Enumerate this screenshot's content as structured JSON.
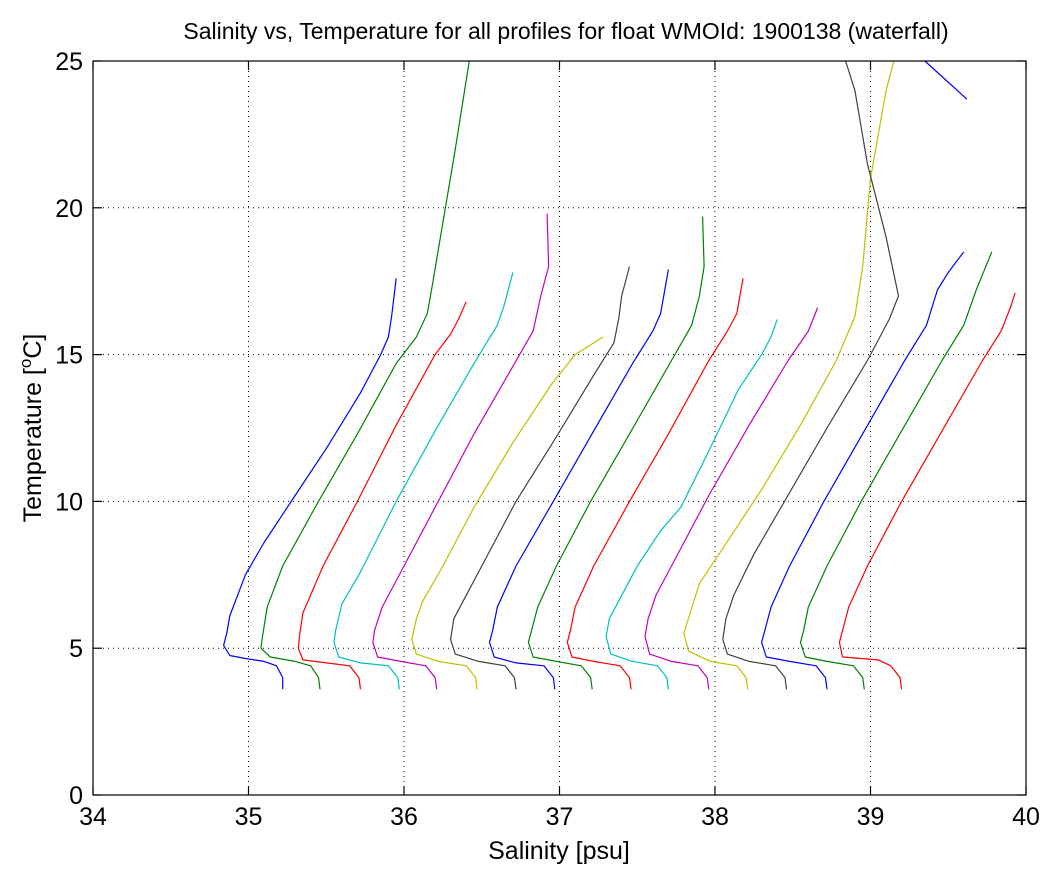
{
  "chart_data": {
    "type": "line",
    "title": "Salinity vs, Temperature for all profiles for float WMOId: 1900138 (waterfall)",
    "xlabel": "Salinity [psu]",
    "ylabel_main": "Temperature [",
    "ylabel_sup": "o",
    "ylabel_end": "C]",
    "xlim": [
      34,
      40
    ],
    "ylim": [
      0,
      25
    ],
    "xticks": [
      "34",
      "35",
      "36",
      "37",
      "38",
      "39",
      "40"
    ],
    "yticks": [
      "0",
      "5",
      "10",
      "15",
      "20",
      "25"
    ],
    "grid": true,
    "waterfall_offset_psu": 0.25,
    "series": [
      {
        "color": "#0000ff",
        "points": [
          [
            35.22,
            3.6
          ],
          [
            35.22,
            4.0
          ],
          [
            35.18,
            4.4
          ],
          [
            35.1,
            4.55
          ],
          [
            34.98,
            4.65
          ],
          [
            34.88,
            4.75
          ],
          [
            34.84,
            5.1
          ],
          [
            34.86,
            5.5
          ],
          [
            34.88,
            6.1
          ],
          [
            34.98,
            7.5
          ],
          [
            35.1,
            8.6
          ],
          [
            35.3,
            10.2
          ],
          [
            35.5,
            11.8
          ],
          [
            35.72,
            13.7
          ],
          [
            35.85,
            15.0
          ],
          [
            35.9,
            15.6
          ],
          [
            35.92,
            16.3
          ],
          [
            35.95,
            17.6
          ]
        ]
      },
      {
        "color": "#008000",
        "points": [
          [
            35.46,
            3.6
          ],
          [
            35.45,
            4.0
          ],
          [
            35.4,
            4.4
          ],
          [
            35.3,
            4.55
          ],
          [
            35.14,
            4.7
          ],
          [
            35.08,
            5.0
          ],
          [
            35.09,
            5.4
          ],
          [
            35.12,
            6.4
          ],
          [
            35.22,
            7.8
          ],
          [
            35.45,
            10.0
          ],
          [
            35.7,
            12.3
          ],
          [
            35.95,
            14.7
          ],
          [
            36.08,
            15.6
          ],
          [
            36.15,
            16.4
          ],
          [
            36.18,
            17.3
          ],
          [
            36.25,
            19.5
          ],
          [
            36.33,
            22.0
          ],
          [
            36.42,
            25.0
          ]
        ]
      },
      {
        "color": "#ff0000",
        "points": [
          [
            35.72,
            3.6
          ],
          [
            35.71,
            4.0
          ],
          [
            35.65,
            4.4
          ],
          [
            35.5,
            4.5
          ],
          [
            35.35,
            4.6
          ],
          [
            35.32,
            5.0
          ],
          [
            35.33,
            5.5
          ],
          [
            35.35,
            6.2
          ],
          [
            35.48,
            7.8
          ],
          [
            35.7,
            10.0
          ],
          [
            35.95,
            12.6
          ],
          [
            36.2,
            15.0
          ],
          [
            36.3,
            15.7
          ],
          [
            36.35,
            16.2
          ],
          [
            36.4,
            16.8
          ]
        ]
      },
      {
        "color": "#00bfbf",
        "points": [
          [
            35.97,
            3.6
          ],
          [
            35.96,
            4.0
          ],
          [
            35.9,
            4.4
          ],
          [
            35.72,
            4.5
          ],
          [
            35.58,
            4.7
          ],
          [
            35.55,
            5.2
          ],
          [
            35.56,
            5.6
          ],
          [
            35.6,
            6.5
          ],
          [
            35.72,
            7.6
          ],
          [
            35.95,
            10.0
          ],
          [
            36.2,
            12.4
          ],
          [
            36.45,
            14.7
          ],
          [
            36.6,
            16.0
          ],
          [
            36.64,
            16.6
          ],
          [
            36.7,
            17.8
          ]
        ]
      },
      {
        "color": "#bf00bf",
        "points": [
          [
            36.21,
            3.6
          ],
          [
            36.2,
            4.0
          ],
          [
            36.14,
            4.4
          ],
          [
            35.98,
            4.55
          ],
          [
            35.83,
            4.7
          ],
          [
            35.8,
            5.2
          ],
          [
            35.81,
            5.6
          ],
          [
            35.86,
            6.4
          ],
          [
            35.98,
            7.6
          ],
          [
            36.2,
            9.8
          ],
          [
            36.45,
            12.3
          ],
          [
            36.7,
            14.6
          ],
          [
            36.83,
            15.8
          ],
          [
            36.88,
            17.0
          ],
          [
            36.93,
            18.0
          ],
          [
            36.92,
            19.8
          ]
        ]
      },
      {
        "color": "#bfbf00",
        "points": [
          [
            36.47,
            3.6
          ],
          [
            36.46,
            4.0
          ],
          [
            36.4,
            4.4
          ],
          [
            36.22,
            4.55
          ],
          [
            36.08,
            4.8
          ],
          [
            36.05,
            5.3
          ],
          [
            36.08,
            6.0
          ],
          [
            36.12,
            6.6
          ],
          [
            36.25,
            7.8
          ],
          [
            36.45,
            9.8
          ],
          [
            36.7,
            12.0
          ],
          [
            36.95,
            14.0
          ],
          [
            37.1,
            15.0
          ],
          [
            37.28,
            15.6
          ]
        ]
      },
      {
        "color": "#404040",
        "points": [
          [
            36.72,
            3.6
          ],
          [
            36.71,
            4.0
          ],
          [
            36.65,
            4.4
          ],
          [
            36.48,
            4.55
          ],
          [
            36.33,
            4.8
          ],
          [
            36.3,
            5.3
          ],
          [
            36.32,
            6.0
          ],
          [
            36.38,
            6.6
          ],
          [
            36.5,
            7.8
          ],
          [
            36.72,
            10.0
          ],
          [
            36.98,
            12.2
          ],
          [
            37.22,
            14.3
          ],
          [
            37.35,
            15.4
          ],
          [
            37.38,
            16.2
          ],
          [
            37.4,
            17.0
          ],
          [
            37.45,
            18.0
          ]
        ]
      },
      {
        "color": "#0000ff",
        "points": [
          [
            36.97,
            3.6
          ],
          [
            36.96,
            4.0
          ],
          [
            36.9,
            4.4
          ],
          [
            36.72,
            4.5
          ],
          [
            36.58,
            4.7
          ],
          [
            36.55,
            5.2
          ],
          [
            36.57,
            5.6
          ],
          [
            36.6,
            6.4
          ],
          [
            36.72,
            7.8
          ],
          [
            36.96,
            10.0
          ],
          [
            37.22,
            12.4
          ],
          [
            37.47,
            14.7
          ],
          [
            37.6,
            15.8
          ],
          [
            37.65,
            16.4
          ],
          [
            37.7,
            17.9
          ]
        ]
      },
      {
        "color": "#008000",
        "points": [
          [
            37.21,
            3.6
          ],
          [
            37.2,
            4.0
          ],
          [
            37.14,
            4.4
          ],
          [
            36.98,
            4.55
          ],
          [
            36.83,
            4.7
          ],
          [
            36.8,
            5.2
          ],
          [
            36.82,
            5.6
          ],
          [
            36.86,
            6.4
          ],
          [
            36.98,
            7.8
          ],
          [
            37.2,
            10.0
          ],
          [
            37.45,
            12.3
          ],
          [
            37.72,
            14.8
          ],
          [
            37.85,
            16.0
          ],
          [
            37.9,
            17.0
          ],
          [
            37.93,
            18.0
          ],
          [
            37.92,
            19.7
          ]
        ]
      },
      {
        "color": "#ff0000",
        "points": [
          [
            37.46,
            3.6
          ],
          [
            37.45,
            4.0
          ],
          [
            37.39,
            4.4
          ],
          [
            37.22,
            4.55
          ],
          [
            37.08,
            4.7
          ],
          [
            37.05,
            5.2
          ],
          [
            37.07,
            5.6
          ],
          [
            37.1,
            6.4
          ],
          [
            37.22,
            7.8
          ],
          [
            37.45,
            10.0
          ],
          [
            37.7,
            12.3
          ],
          [
            37.96,
            14.8
          ],
          [
            38.08,
            15.8
          ],
          [
            38.14,
            16.4
          ],
          [
            38.18,
            17.6
          ]
        ]
      },
      {
        "color": "#00bfbf",
        "points": [
          [
            37.7,
            3.6
          ],
          [
            37.69,
            4.0
          ],
          [
            37.63,
            4.4
          ],
          [
            37.47,
            4.55
          ],
          [
            37.33,
            4.8
          ],
          [
            37.3,
            5.4
          ],
          [
            37.32,
            6.0
          ],
          [
            37.38,
            6.6
          ],
          [
            37.5,
            7.8
          ],
          [
            37.65,
            9.0
          ],
          [
            37.78,
            9.8
          ],
          [
            37.95,
            11.6
          ],
          [
            38.15,
            13.8
          ],
          [
            38.3,
            15.0
          ],
          [
            38.36,
            15.6
          ],
          [
            38.4,
            16.2
          ]
        ]
      },
      {
        "color": "#bf00bf",
        "points": [
          [
            37.96,
            3.6
          ],
          [
            37.95,
            4.0
          ],
          [
            37.89,
            4.4
          ],
          [
            37.72,
            4.55
          ],
          [
            37.58,
            4.8
          ],
          [
            37.55,
            5.4
          ],
          [
            37.57,
            6.0
          ],
          [
            37.62,
            6.8
          ],
          [
            37.74,
            8.0
          ],
          [
            37.96,
            10.2
          ],
          [
            38.22,
            12.6
          ],
          [
            38.47,
            14.8
          ],
          [
            38.6,
            15.8
          ],
          [
            38.63,
            16.2
          ],
          [
            38.66,
            16.6
          ]
        ]
      },
      {
        "color": "#bfbf00",
        "points": [
          [
            38.21,
            3.6
          ],
          [
            38.2,
            4.0
          ],
          [
            38.14,
            4.4
          ],
          [
            37.97,
            4.55
          ],
          [
            37.83,
            4.9
          ],
          [
            37.8,
            5.5
          ],
          [
            37.84,
            6.2
          ],
          [
            37.9,
            7.2
          ],
          [
            38.05,
            8.4
          ],
          [
            38.3,
            10.4
          ],
          [
            38.55,
            12.6
          ],
          [
            38.78,
            14.8
          ],
          [
            38.9,
            16.3
          ],
          [
            38.95,
            18.0
          ],
          [
            39.0,
            21.0
          ],
          [
            39.1,
            24.0
          ],
          [
            39.15,
            25.0
          ]
        ]
      },
      {
        "color": "#404040",
        "points": [
          [
            38.46,
            3.6
          ],
          [
            38.45,
            4.0
          ],
          [
            38.39,
            4.4
          ],
          [
            38.22,
            4.55
          ],
          [
            38.08,
            4.8
          ],
          [
            38.05,
            5.3
          ],
          [
            38.07,
            6.0
          ],
          [
            38.12,
            6.8
          ],
          [
            38.25,
            8.2
          ],
          [
            38.48,
            10.3
          ],
          [
            38.72,
            12.5
          ],
          [
            38.98,
            14.8
          ],
          [
            39.12,
            16.2
          ],
          [
            39.18,
            17.0
          ],
          [
            39.1,
            19.0
          ],
          [
            38.98,
            21.5
          ],
          [
            38.9,
            24.0
          ],
          [
            38.84,
            25.0
          ]
        ]
      },
      {
        "color": "#0000ff",
        "points": [
          [
            38.72,
            3.6
          ],
          [
            38.71,
            4.0
          ],
          [
            38.65,
            4.4
          ],
          [
            38.48,
            4.55
          ],
          [
            38.33,
            4.7
          ],
          [
            38.3,
            5.2
          ],
          [
            38.32,
            5.6
          ],
          [
            38.36,
            6.4
          ],
          [
            38.48,
            7.8
          ],
          [
            38.7,
            10.0
          ],
          [
            38.96,
            12.4
          ],
          [
            39.22,
            14.8
          ],
          [
            39.36,
            16.0
          ],
          [
            39.43,
            17.2
          ],
          [
            39.5,
            17.8
          ],
          [
            39.6,
            18.5
          ]
        ]
      },
      {
        "color": "#008000",
        "points": [
          [
            38.96,
            3.6
          ],
          [
            38.95,
            4.0
          ],
          [
            38.89,
            4.4
          ],
          [
            38.72,
            4.55
          ],
          [
            38.58,
            4.7
          ],
          [
            38.55,
            5.2
          ],
          [
            38.57,
            5.6
          ],
          [
            38.6,
            6.4
          ],
          [
            38.72,
            7.8
          ],
          [
            38.94,
            10.0
          ],
          [
            39.2,
            12.4
          ],
          [
            39.46,
            14.8
          ],
          [
            39.6,
            16.0
          ],
          [
            39.68,
            17.2
          ],
          [
            39.78,
            18.5
          ]
        ]
      },
      {
        "color": "#ff0000",
        "points": [
          [
            39.2,
            3.6
          ],
          [
            39.19,
            4.0
          ],
          [
            39.13,
            4.4
          ],
          [
            39.05,
            4.6
          ],
          [
            38.82,
            4.7
          ],
          [
            38.8,
            5.2
          ],
          [
            38.82,
            5.6
          ],
          [
            38.86,
            6.4
          ],
          [
            38.98,
            7.8
          ],
          [
            39.2,
            10.0
          ],
          [
            39.46,
            12.4
          ],
          [
            39.72,
            14.8
          ],
          [
            39.84,
            15.8
          ],
          [
            39.9,
            16.6
          ],
          [
            39.93,
            17.1
          ]
        ]
      },
      {
        "color": "#0000ff",
        "points": [
          [
            39.35,
            25.0
          ],
          [
            39.62,
            23.7
          ]
        ]
      }
    ]
  }
}
